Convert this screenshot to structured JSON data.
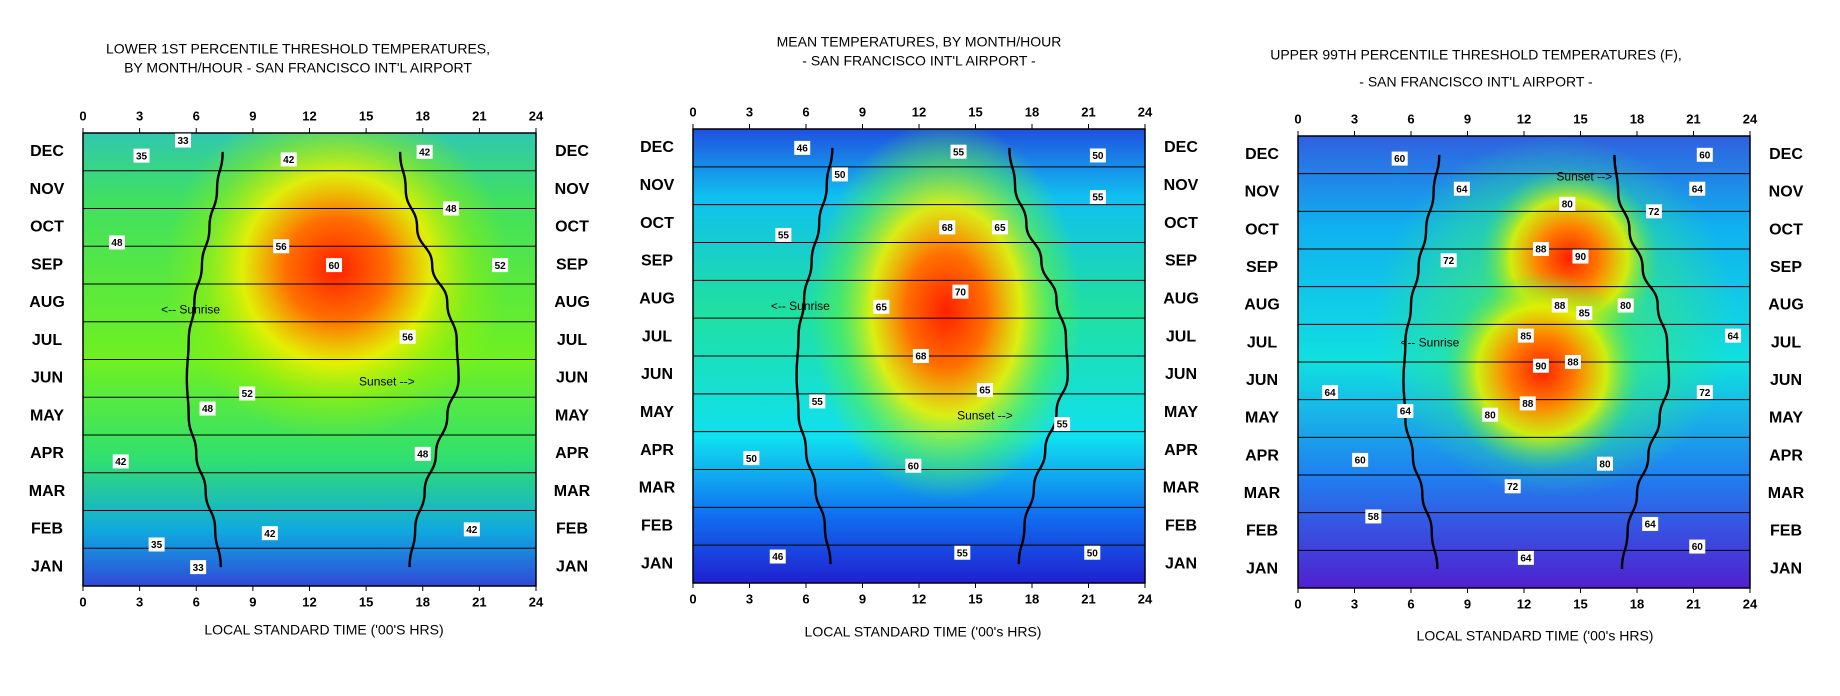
{
  "chart_data": [
    {
      "type": "contour",
      "title": "LOWER 1ST PERCENTILE THRESHOLD TEMPERATURES,",
      "subtitle": "BY MONTH/HOUR - SAN FRANCISCO INT'L AIRPORT",
      "x_label": "LOCAL STANDARD TIME ('00'S HRS)",
      "categories": [
        "JAN",
        "FEB",
        "MAR",
        "APR",
        "MAY",
        "JUN",
        "JUL",
        "AUG",
        "SEP",
        "OCT",
        "NOV",
        "DEC"
      ],
      "xlim": [
        0,
        24
      ],
      "xticks": [
        0,
        3,
        6,
        9,
        12,
        15,
        18,
        21,
        24
      ],
      "ylim": [
        0,
        12
      ],
      "series": [
        {
          "color": "#000000",
          "values": [
            7.3,
            7.0,
            6.5,
            6.0,
            5.6,
            5.5,
            5.6,
            5.9,
            6.3,
            6.7,
            7.1,
            7.4
          ]
        },
        {
          "color": "#000000",
          "values": [
            17.3,
            17.6,
            18.1,
            18.7,
            19.3,
            19.9,
            19.8,
            19.3,
            18.5,
            17.7,
            17.1,
            16.8
          ]
        }
      ],
      "annotations": [
        {
          "text": "<-- Sunrise",
          "x": 5.7,
          "y": 7.3
        },
        {
          "text": "Sunset -->",
          "x": 16.1,
          "y": 5.4
        }
      ],
      "contour_labels": [
        {
          "value": 35,
          "x": 3.1,
          "y": 11.4
        },
        {
          "value": 33,
          "x": 5.3,
          "y": 11.8
        },
        {
          "value": 42,
          "x": 10.9,
          "y": 11.3
        },
        {
          "value": 42,
          "x": 18.1,
          "y": 11.5
        },
        {
          "value": 48,
          "x": 19.5,
          "y": 10.0
        },
        {
          "value": 48,
          "x": 1.8,
          "y": 9.1
        },
        {
          "value": 56,
          "x": 10.5,
          "y": 9.0
        },
        {
          "value": 60,
          "x": 13.3,
          "y": 8.5
        },
        {
          "value": 52,
          "x": 22.1,
          "y": 8.5
        },
        {
          "value": 56,
          "x": 17.2,
          "y": 6.6
        },
        {
          "value": 52,
          "x": 8.7,
          "y": 5.1
        },
        {
          "value": 48,
          "x": 6.6,
          "y": 4.7
        },
        {
          "value": 42,
          "x": 2.0,
          "y": 3.3
        },
        {
          "value": 48,
          "x": 18.0,
          "y": 3.5
        },
        {
          "value": 42,
          "x": 9.9,
          "y": 1.4
        },
        {
          "value": 42,
          "x": 20.6,
          "y": 1.5
        },
        {
          "value": 35,
          "x": 3.9,
          "y": 1.1
        },
        {
          "value": 33,
          "x": 6.1,
          "y": 0.5
        }
      ]
    },
    {
      "type": "contour",
      "title": "MEAN TEMPERATURES,  BY MONTH/HOUR",
      "subtitle": "- SAN FRANCISCO INT'L AIRPORT -",
      "x_label": "LOCAL STANDARD TIME ('00's HRS)",
      "categories": [
        "JAN",
        "FEB",
        "MAR",
        "APR",
        "MAY",
        "JUN",
        "JUL",
        "AUG",
        "SEP",
        "OCT",
        "NOV",
        "DEC"
      ],
      "xlim": [
        0,
        24
      ],
      "xticks": [
        0,
        3,
        6,
        9,
        12,
        15,
        18,
        21,
        24
      ],
      "ylim": [
        0,
        12
      ],
      "series": [
        {
          "color": "#000000",
          "values": [
            7.3,
            7.0,
            6.5,
            6.0,
            5.6,
            5.5,
            5.6,
            5.9,
            6.3,
            6.7,
            7.1,
            7.4
          ]
        },
        {
          "color": "#000000",
          "values": [
            17.3,
            17.6,
            18.1,
            18.7,
            19.3,
            19.9,
            19.8,
            19.3,
            18.5,
            17.7,
            17.1,
            16.8
          ]
        }
      ],
      "annotations": [
        {
          "text": "<-- Sunrise",
          "x": 5.7,
          "y": 7.3
        },
        {
          "text": "Sunset -->",
          "x": 15.5,
          "y": 4.4
        }
      ],
      "contour_labels": [
        {
          "value": 46,
          "x": 5.8,
          "y": 11.5
        },
        {
          "value": 55,
          "x": 14.1,
          "y": 11.4
        },
        {
          "value": 50,
          "x": 21.5,
          "y": 11.3
        },
        {
          "value": 50,
          "x": 7.8,
          "y": 10.8
        },
        {
          "value": 55,
          "x": 21.5,
          "y": 10.2
        },
        {
          "value": 55,
          "x": 4.8,
          "y": 9.2
        },
        {
          "value": 68,
          "x": 13.5,
          "y": 9.4
        },
        {
          "value": 65,
          "x": 16.3,
          "y": 9.4
        },
        {
          "value": 70,
          "x": 14.2,
          "y": 7.7
        },
        {
          "value": 65,
          "x": 10.0,
          "y": 7.3
        },
        {
          "value": 68,
          "x": 12.1,
          "y": 6.0
        },
        {
          "value": 65,
          "x": 15.5,
          "y": 5.1
        },
        {
          "value": 55,
          "x": 6.6,
          "y": 4.8
        },
        {
          "value": 55,
          "x": 19.6,
          "y": 4.2
        },
        {
          "value": 50,
          "x": 3.1,
          "y": 3.3
        },
        {
          "value": 60,
          "x": 11.7,
          "y": 3.1
        },
        {
          "value": 46,
          "x": 4.5,
          "y": 0.7
        },
        {
          "value": 55,
          "x": 14.3,
          "y": 0.8
        },
        {
          "value": 50,
          "x": 21.2,
          "y": 0.8
        }
      ]
    },
    {
      "type": "contour",
      "title": "UPPER 99TH PERCENTILE THRESHOLD TEMPERATURES (F),",
      "subtitle": "- SAN FRANCISCO INT'L AIRPORT -",
      "x_label": "LOCAL STANDARD TIME ('00's HRS)",
      "categories": [
        "JAN",
        "FEB",
        "MAR",
        "APR",
        "MAY",
        "JUN",
        "JUL",
        "AUG",
        "SEP",
        "OCT",
        "NOV",
        "DEC"
      ],
      "xlim": [
        0,
        24
      ],
      "xticks": [
        0,
        3,
        6,
        9,
        12,
        15,
        18,
        21,
        24
      ],
      "ylim": [
        0,
        12
      ],
      "series": [
        {
          "color": "#000000",
          "values": [
            7.4,
            7.1,
            6.6,
            6.1,
            5.7,
            5.6,
            5.7,
            6.0,
            6.4,
            6.8,
            7.2,
            7.5
          ]
        },
        {
          "color": "#000000",
          "values": [
            17.2,
            17.5,
            18.0,
            18.6,
            19.2,
            19.7,
            19.6,
            19.1,
            18.3,
            17.6,
            17.0,
            16.8
          ]
        }
      ],
      "annotations": [
        {
          "text": "<-- Sunrise",
          "x": 7.0,
          "y": 6.5
        },
        {
          "text": "Sunset -->",
          "x": 15.2,
          "y": 10.9
        }
      ],
      "contour_labels": [
        {
          "value": 60,
          "x": 5.4,
          "y": 11.4
        },
        {
          "value": 60,
          "x": 21.6,
          "y": 11.5
        },
        {
          "value": 64,
          "x": 8.7,
          "y": 10.6
        },
        {
          "value": 64,
          "x": 21.2,
          "y": 10.6
        },
        {
          "value": 80,
          "x": 14.3,
          "y": 10.2
        },
        {
          "value": 72,
          "x": 18.9,
          "y": 10.0
        },
        {
          "value": 88,
          "x": 12.9,
          "y": 9.0
        },
        {
          "value": 90,
          "x": 15.0,
          "y": 8.8
        },
        {
          "value": 72,
          "x": 8.0,
          "y": 8.7
        },
        {
          "value": 88,
          "x": 13.9,
          "y": 7.5
        },
        {
          "value": 85,
          "x": 15.2,
          "y": 7.3
        },
        {
          "value": 80,
          "x": 17.4,
          "y": 7.5
        },
        {
          "value": 85,
          "x": 12.1,
          "y": 6.7
        },
        {
          "value": 64,
          "x": 23.1,
          "y": 6.7
        },
        {
          "value": 90,
          "x": 12.9,
          "y": 5.9
        },
        {
          "value": 88,
          "x": 14.6,
          "y": 6.0
        },
        {
          "value": 72,
          "x": 21.6,
          "y": 5.2
        },
        {
          "value": 64,
          "x": 1.7,
          "y": 5.2
        },
        {
          "value": 88,
          "x": 12.2,
          "y": 4.9
        },
        {
          "value": 64,
          "x": 5.7,
          "y": 4.7
        },
        {
          "value": 80,
          "x": 10.2,
          "y": 4.6
        },
        {
          "value": 60,
          "x": 3.3,
          "y": 3.4
        },
        {
          "value": 80,
          "x": 16.3,
          "y": 3.3
        },
        {
          "value": 72,
          "x": 11.4,
          "y": 2.7
        },
        {
          "value": 58,
          "x": 4.0,
          "y": 1.9
        },
        {
          "value": 64,
          "x": 18.7,
          "y": 1.7
        },
        {
          "value": 64,
          "x": 12.1,
          "y": 0.8
        },
        {
          "value": 60,
          "x": 21.2,
          "y": 1.1
        }
      ]
    }
  ]
}
